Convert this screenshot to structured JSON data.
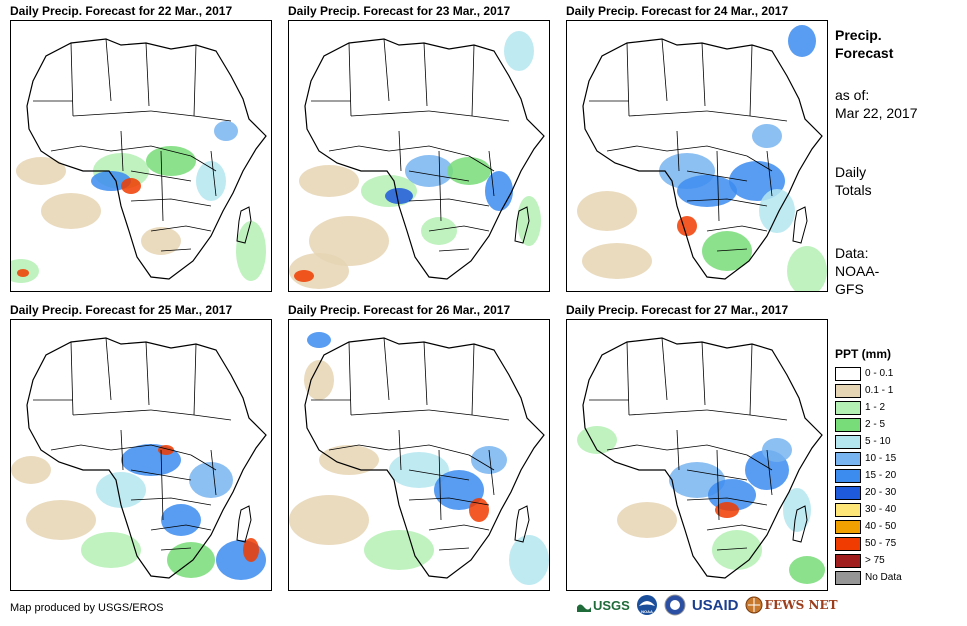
{
  "panels": [
    {
      "title": "Daily Precip. Forecast for 22 Mar., 2017"
    },
    {
      "title": "Daily Precip. Forecast for 23 Mar., 2017"
    },
    {
      "title": "Daily Precip. Forecast for 24 Mar., 2017"
    },
    {
      "title": "Daily Precip. Forecast for 25 Mar., 2017"
    },
    {
      "title": "Daily Precip. Forecast for 26 Mar., 2017"
    },
    {
      "title": "Daily Precip. Forecast for 27 Mar., 2017"
    }
  ],
  "sidebar": {
    "title_line1": "Precip.",
    "title_line2": "Forecast",
    "asof_label": "as of:",
    "asof_date": "Mar 22, 2017",
    "totals_line1": "Daily",
    "totals_line2": "Totals",
    "data_line1": "Data:",
    "data_line2": "NOAA-",
    "data_line3": "GFS"
  },
  "legend": {
    "title": "PPT (mm)",
    "items": [
      {
        "label": "0 - 0.1",
        "color": "#ffffff"
      },
      {
        "label": "0.1 - 1",
        "color": "#e6d5b4"
      },
      {
        "label": "1 - 2",
        "color": "#b4f0b4"
      },
      {
        "label": "2 - 5",
        "color": "#78dc78"
      },
      {
        "label": "5 - 10",
        "color": "#b4e6f0"
      },
      {
        "label": "10 - 15",
        "color": "#78b4f0"
      },
      {
        "label": "15 - 20",
        "color": "#3c8cf0"
      },
      {
        "label": "20 - 30",
        "color": "#1e5adc"
      },
      {
        "label": "30 - 40",
        "color": "#ffe678"
      },
      {
        "label": "40 - 50",
        "color": "#f0a000"
      },
      {
        "label": "50 - 75",
        "color": "#f03c00"
      },
      {
        "label": "> 75",
        "color": "#a01e1e"
      },
      {
        "label": "No Data",
        "color": "#969696"
      }
    ]
  },
  "footer": {
    "credit": "Map produced by USGS/EROS",
    "logos": [
      "USGS",
      "NOAA",
      "USAID",
      "FEWS NET"
    ]
  }
}
